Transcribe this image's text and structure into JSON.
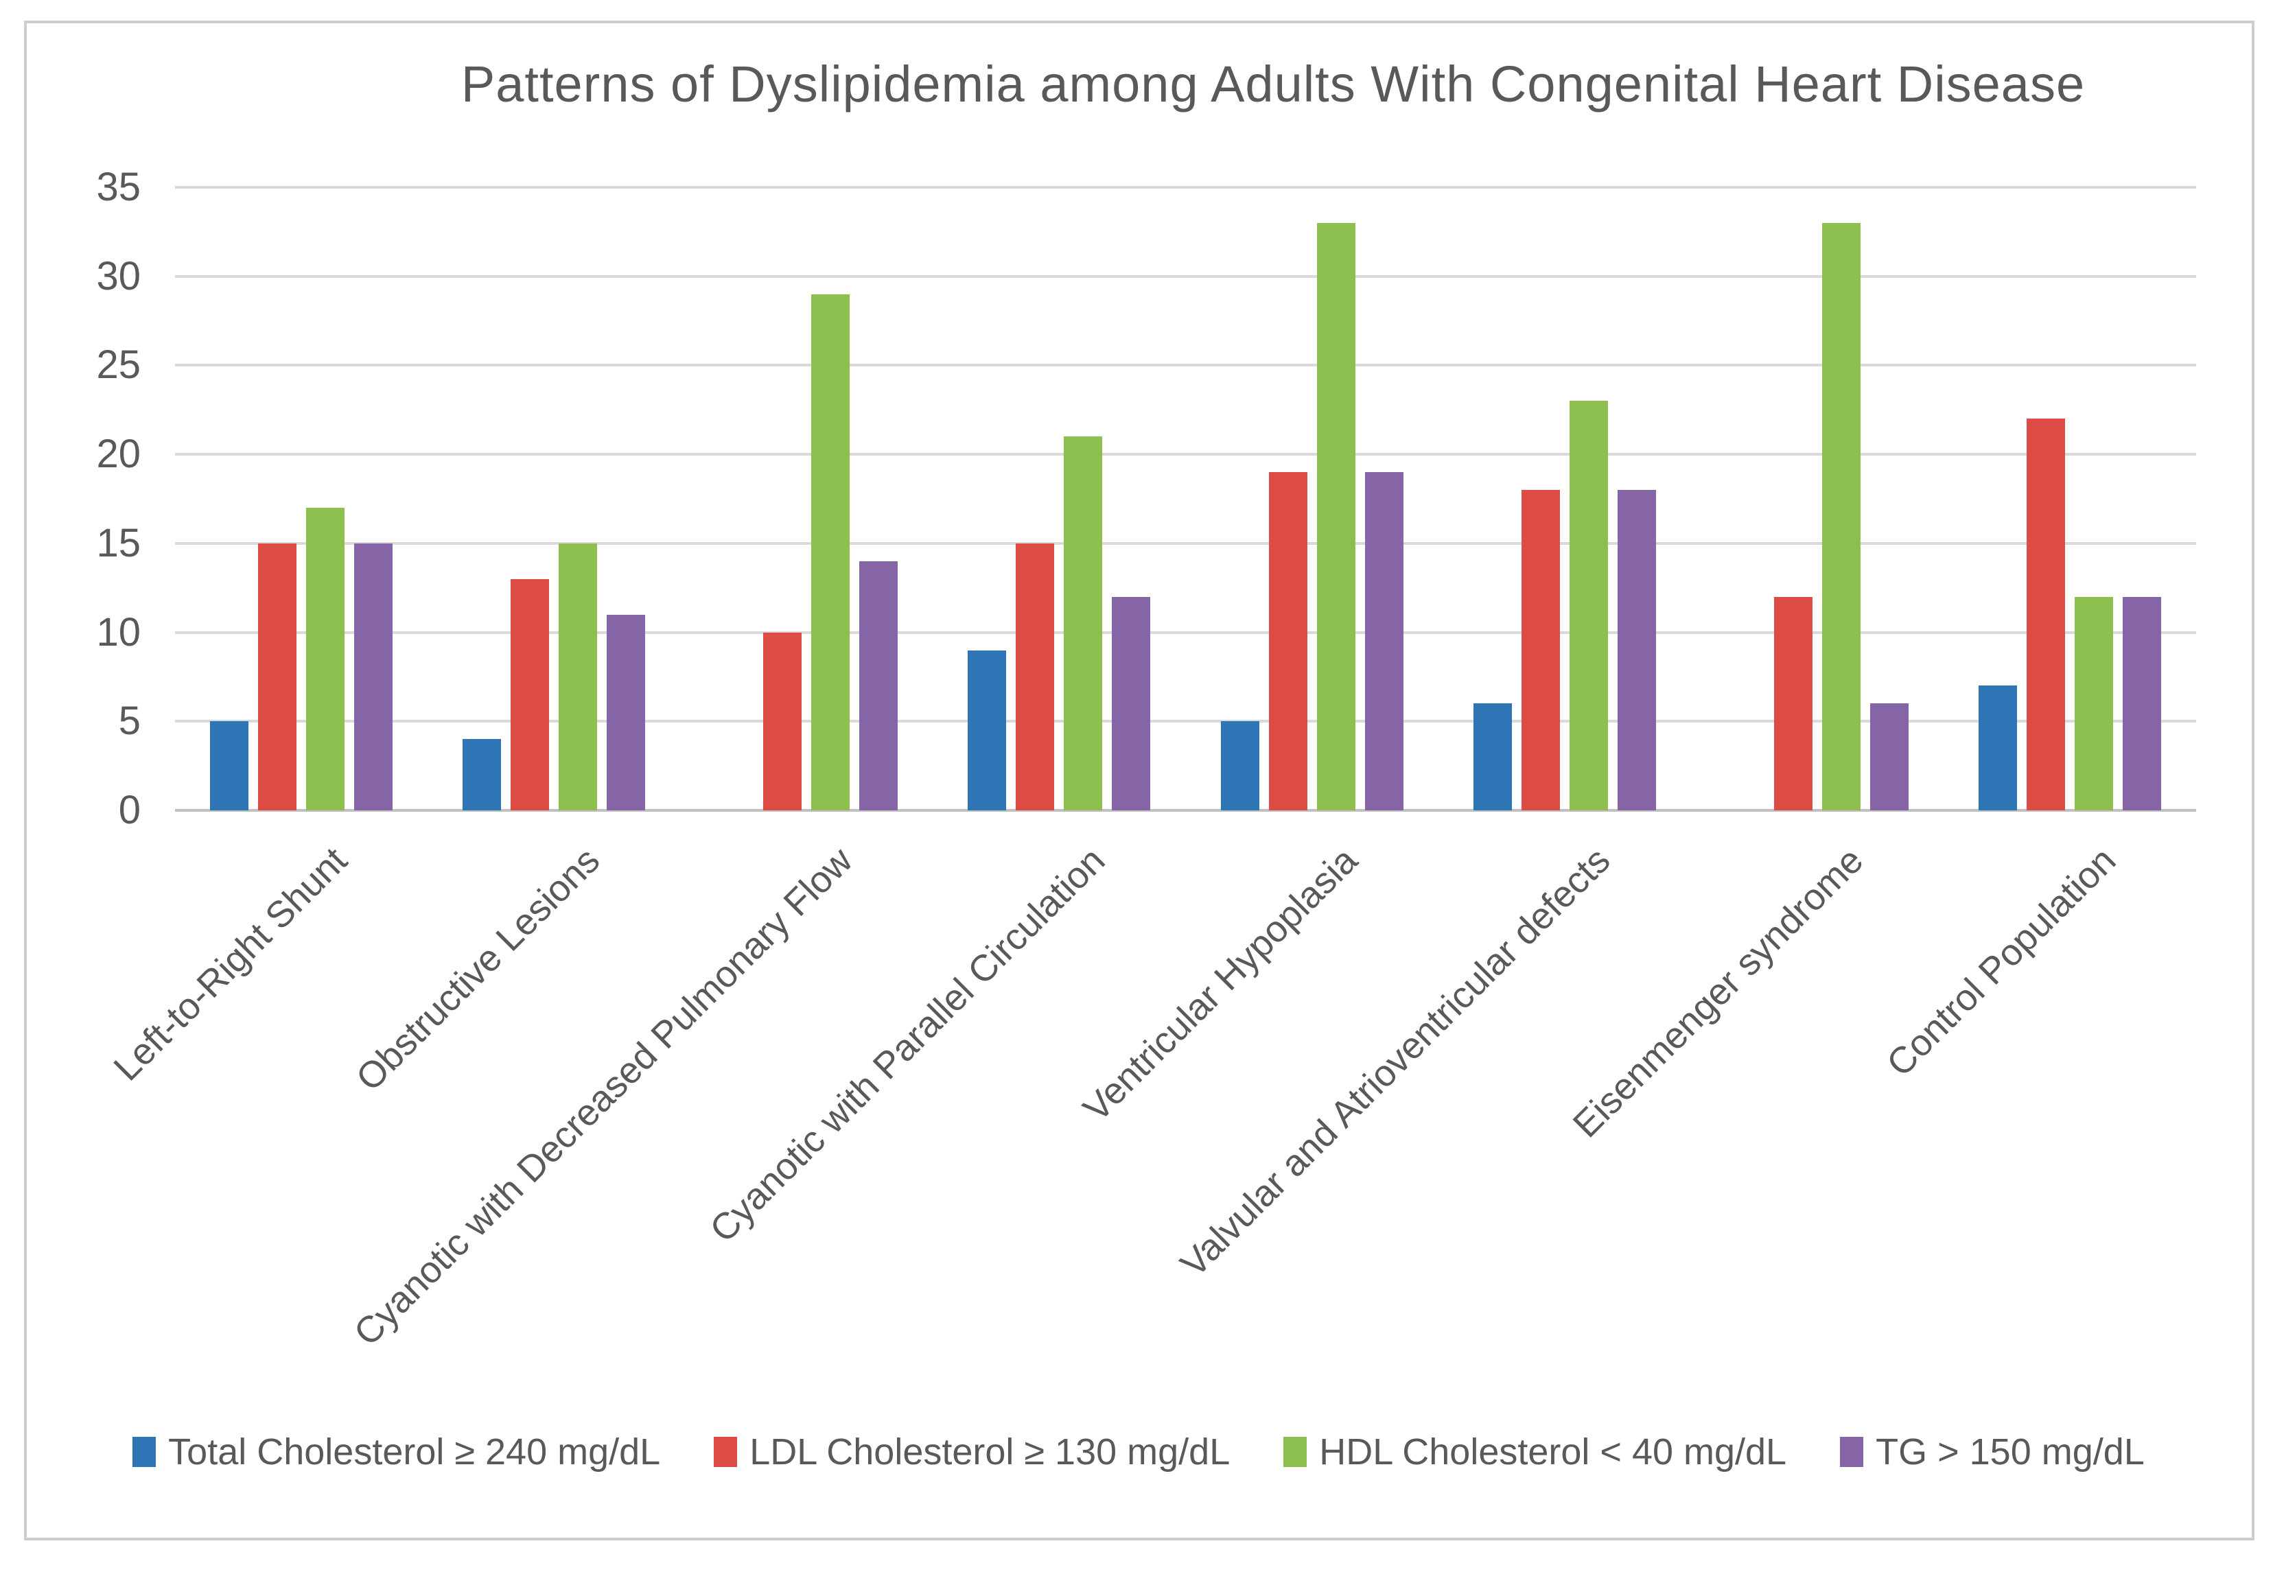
{
  "title": "Patterns of Dyslipidemia among Adults With Congenital Heart Disease",
  "chart_data": {
    "type": "bar",
    "title": "Patterns of Dyslipidemia among Adults With Congenital Heart Disease",
    "categories": [
      "Left-to-Right Shunt",
      "Obstructive Lesions",
      "Cyanotic with Decreased Pulmonary Flow",
      "Cyanotic with Parallel Circulation",
      "Ventricular Hypoplasia",
      "Valvular and Atrioventricular defects",
      "Eisenmenger syndrome",
      "Control Population"
    ],
    "series": [
      {
        "name": "Total Cholesterol ≥ 240 mg/dL",
        "color": "#2E75B6",
        "values": [
          5,
          4,
          0,
          9,
          5,
          6,
          0,
          7
        ]
      },
      {
        "name": "LDL Cholesterol ≥ 130 mg/dL",
        "color": "#DC4B44",
        "values": [
          15,
          13,
          10,
          15,
          19,
          18,
          12,
          22
        ]
      },
      {
        "name": "HDL Cholesterol < 40 mg/dL",
        "color": "#8CBF4D",
        "values": [
          17,
          15,
          29,
          21,
          33,
          23,
          33,
          12
        ]
      },
      {
        "name": "TG > 150 mg/dL",
        "color": "#8565A6",
        "values": [
          15,
          11,
          14,
          12,
          19,
          18,
          6,
          12
        ]
      }
    ],
    "xlabel": "",
    "ylabel": "",
    "ylim": [
      0,
      35
    ],
    "yticks": [
      0,
      5,
      10,
      15,
      20,
      25,
      30,
      35
    ],
    "grid": true,
    "legend_position": "bottom",
    "text_color": "#595959",
    "gridline_color": "#D9D9D9",
    "axis_line_color": "#C0C0C0"
  }
}
